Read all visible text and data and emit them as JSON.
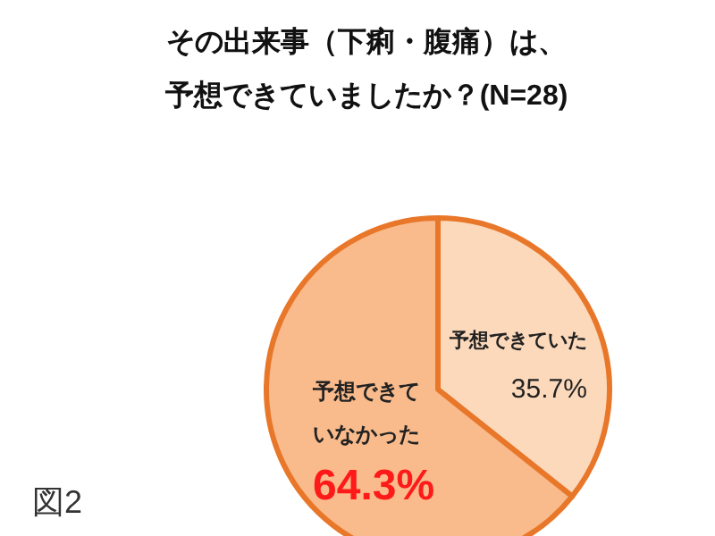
{
  "chart_data": {
    "type": "pie",
    "title": "その出来事（下痢・腹痛）は、予想できていましたか？(N=28)",
    "categories": [
      "予想できていた",
      "予想できていなかった"
    ],
    "values": [
      35.7,
      64.3
    ],
    "value_labels": [
      "35.7%",
      "64.3%"
    ],
    "colors": [
      "#fcd9bb",
      "#f9bb8c"
    ],
    "annotations": [
      "図2"
    ]
  }
}
